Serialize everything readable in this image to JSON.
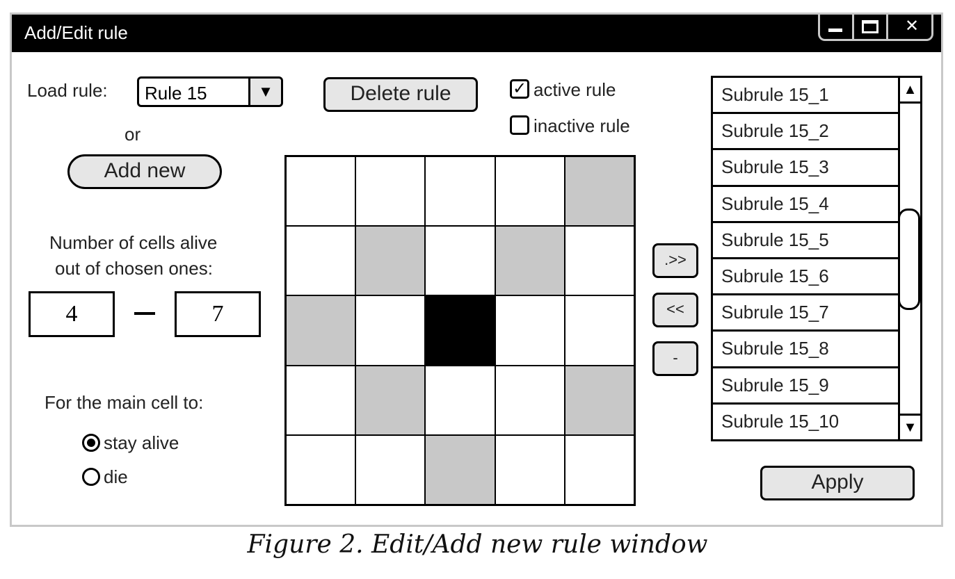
{
  "window": {
    "title": "Add/Edit rule"
  },
  "load_rule": {
    "label": "Load rule:",
    "selected": "Rule 15",
    "or_label": "or"
  },
  "buttons": {
    "delete": "Delete rule",
    "add_new": "Add new",
    "add_subrule": ".>>",
    "remove_subrule": "<<",
    "minus": "-",
    "apply": "Apply"
  },
  "status": {
    "active_label": "active rule",
    "active_checked": true,
    "inactive_label": "inactive rule",
    "inactive_checked": false
  },
  "cells_alive": {
    "label_line1": "Number of cells alive",
    "label_line2": "out of chosen ones:",
    "min": "4",
    "max": "7"
  },
  "main_cell": {
    "label": "For the main cell to:",
    "options": [
      {
        "label": "stay alive",
        "selected": true
      },
      {
        "label": "die",
        "selected": false
      }
    ]
  },
  "grid": {
    "rows": 5,
    "cols": 5,
    "states": [
      [
        0,
        0,
        0,
        0,
        1
      ],
      [
        0,
        1,
        0,
        1,
        0
      ],
      [
        1,
        0,
        2,
        0,
        0
      ],
      [
        0,
        1,
        0,
        0,
        1
      ],
      [
        0,
        0,
        1,
        0,
        0
      ]
    ],
    "colors": {
      "empty": "#ffffff",
      "chosen": "#c8c8c8",
      "main": "#000000"
    }
  },
  "subrules": [
    "Subrule 15_1",
    "Subrule 15_2",
    "Subrule 15_3",
    "Subrule 15_4",
    "Subrule 15_5",
    "Subrule 15_6",
    "Subrule 15_7",
    "Subrule 15_8",
    "Subrule 15_9",
    "Subrule 15_10"
  ],
  "caption": "Figure 2. Edit/Add new rule window"
}
